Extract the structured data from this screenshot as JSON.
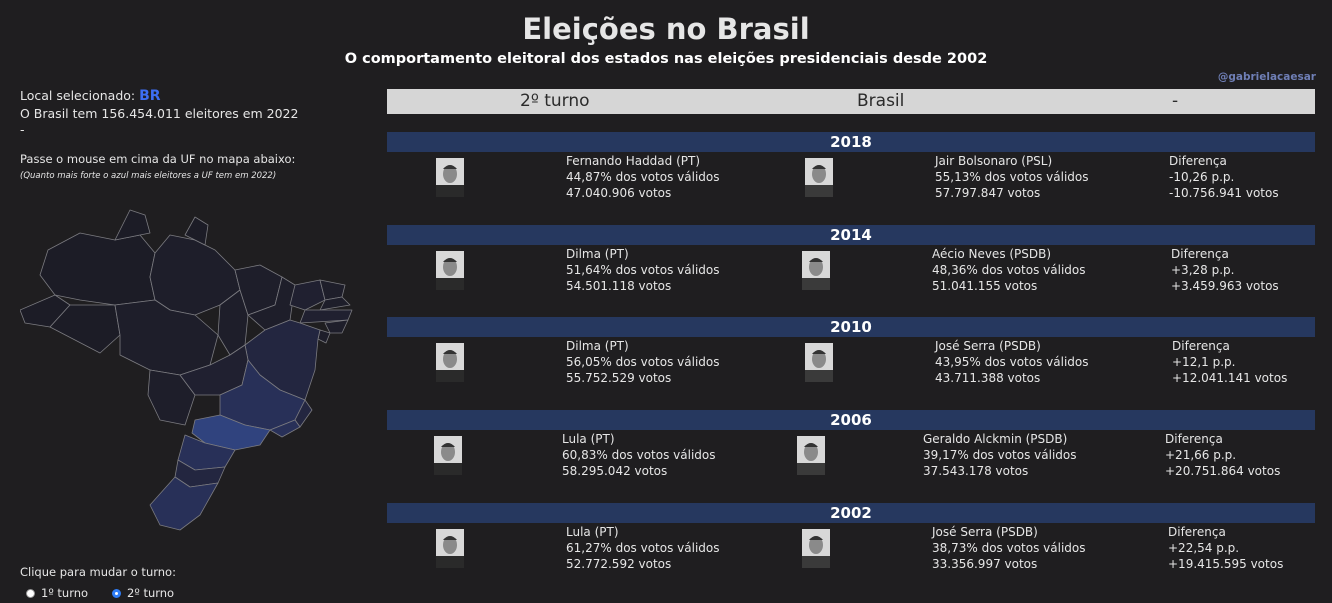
{
  "header": {
    "title": "Eleições no Brasil",
    "subtitle": "O comportamento eleitoral dos estados nas eleições presidenciais desde 2002",
    "handle": "@gabrielacaesar"
  },
  "sidebar": {
    "selected_prefix": "Local selecionado:",
    "selected_code": "BR",
    "voters_text": "O Brasil tem 156.454.011 eleitores em 2022",
    "dash": "-",
    "hover_text": "Passe o mouse em cima da UF no mapa abaixo:",
    "hint_text": "(Quanto mais forte o azul mais eleitores a UF tem em 2022)",
    "click_text": "Clique para mudar o turno:",
    "radio_first": "1º turno",
    "radio_second": "2º turno",
    "selected_radio": "2º turno"
  },
  "filter_bar": {
    "round": "2º turno",
    "location": "Brasil",
    "extra": "-"
  },
  "colors": {
    "background": "#1f1e20",
    "year_bar": "#26385f",
    "header_bar": "#d6d6d6",
    "accent": "#3d6ef2"
  },
  "elections": [
    {
      "year": "2018",
      "c1": {
        "name": "Fernando Haddad (PT)",
        "pct": "44,87% dos votos válidos",
        "votes": "47.040.906 votos"
      },
      "c2": {
        "name": "Jair Bolsonaro (PSL)",
        "pct": "55,13% dos votos válidos",
        "votes": "57.797.847 votos"
      },
      "diff": {
        "label": "Diferença",
        "pp": "-10,26 p.p.",
        "votes": "-10.756.941 votos"
      }
    },
    {
      "year": "2014",
      "c1": {
        "name": "Dilma (PT)",
        "pct": "51,64% dos votos válidos",
        "votes": "54.501.118 votos"
      },
      "c2": {
        "name": "Aécio Neves (PSDB)",
        "pct": "48,36% dos votos válidos",
        "votes": "51.041.155 votos"
      },
      "diff": {
        "label": "Diferença",
        "pp": "+3,28 p.p.",
        "votes": "+3.459.963 votos"
      }
    },
    {
      "year": "2010",
      "c1": {
        "name": "Dilma (PT)",
        "pct": "56,05% dos votos válidos",
        "votes": "55.752.529 votos"
      },
      "c2": {
        "name": "José Serra (PSDB)",
        "pct": "43,95% dos votos válidos",
        "votes": "43.711.388 votos"
      },
      "diff": {
        "label": "Diferença",
        "pp": "+12,1 p.p.",
        "votes": "+12.041.141 votos"
      }
    },
    {
      "year": "2006",
      "c1": {
        "name": "Lula (PT)",
        "pct": "60,83% dos votos válidos",
        "votes": "58.295.042 votos"
      },
      "c2": {
        "name": "Geraldo Alckmin (PSDB)",
        "pct": "39,17% dos votos válidos",
        "votes": "37.543.178 votos"
      },
      "diff": {
        "label": "Diferença",
        "pp": "+21,66 p.p.",
        "votes": "+20.751.864 votos"
      }
    },
    {
      "year": "2002",
      "c1": {
        "name": "Lula (PT)",
        "pct": "61,27% dos votos válidos",
        "votes": "52.772.592 votos"
      },
      "c2": {
        "name": "José Serra (PSDB)",
        "pct": "38,73% dos votos válidos",
        "votes": "33.356.997 votos"
      },
      "diff": {
        "label": "Diferença",
        "pp": "+22,54 p.p.",
        "votes": "+19.415.595 votos"
      }
    }
  ]
}
